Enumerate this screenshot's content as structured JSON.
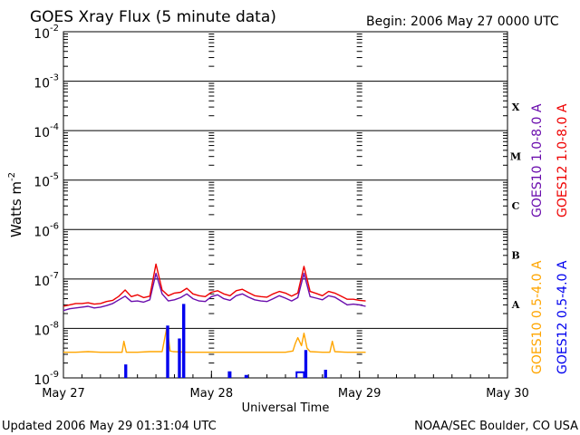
{
  "chart_data": {
    "type": "line",
    "title": "GOES Xray Flux (5 minute data)",
    "begin_label": "Begin:  2006 May 27 0000 UTC",
    "ylabel_main": "Watts m",
    "ylabel_exp": "-2",
    "xlabel": "Universal Time",
    "updated": "Updated 2006 May 29 01:31:04 UTC",
    "credit": "NOAA/SEC Boulder, CO USA",
    "x_ticks": [
      {
        "label": "May 27",
        "hours": 0
      },
      {
        "label": "May 28",
        "hours": 24
      },
      {
        "label": "May 29",
        "hours": 48
      },
      {
        "label": "May 30",
        "hours": 72
      }
    ],
    "y_ticks": [
      {
        "base": "10",
        "exp": "-2",
        "value": 0.01
      },
      {
        "base": "10",
        "exp": "-3",
        "value": 0.001
      },
      {
        "base": "10",
        "exp": "-4",
        "value": 0.0001
      },
      {
        "base": "10",
        "exp": "-5",
        "value": 1e-05
      },
      {
        "base": "10",
        "exp": "-6",
        "value": 1e-06
      },
      {
        "base": "10",
        "exp": "-7",
        "value": 1e-07
      },
      {
        "base": "10",
        "exp": "-8",
        "value": 1e-08
      },
      {
        "base": "10",
        "exp": "-9",
        "value": 1e-09
      }
    ],
    "yscale": "log",
    "ylim": [
      1e-09,
      0.01
    ],
    "xlim_hours": [
      0,
      72
    ],
    "grid": true,
    "flare_classes": [
      {
        "label": "X",
        "value": 0.0001
      },
      {
        "label": "M",
        "value": 1e-05
      },
      {
        "label": "C",
        "value": 1e-06
      },
      {
        "label": "B",
        "value": 1e-07
      },
      {
        "label": "A",
        "value": 1e-08
      }
    ],
    "series": [
      {
        "name": "GOES10 1.0-8.0 A",
        "color": "#6a0dad",
        "x_hours": [
          0,
          1,
          2,
          3,
          4,
          5,
          6,
          7,
          8,
          9,
          10,
          11,
          12,
          13,
          14,
          15,
          16,
          17,
          18,
          19,
          20,
          21,
          22,
          23,
          24,
          25,
          26,
          27,
          28,
          29,
          30,
          31,
          32,
          33,
          34,
          35,
          36,
          37,
          38,
          39,
          40,
          41,
          42,
          43,
          44,
          45,
          46,
          47,
          48,
          49
        ],
        "values": [
          2.3e-08,
          2.5e-08,
          2.6e-08,
          2.7e-08,
          2.8e-08,
          2.6e-08,
          2.7e-08,
          2.9e-08,
          3.2e-08,
          3.8e-08,
          4.5e-08,
          3.5e-08,
          3.6e-08,
          3.4e-08,
          3.8e-08,
          1.3e-07,
          5e-08,
          3.6e-08,
          3.8e-08,
          4.2e-08,
          5e-08,
          4e-08,
          3.6e-08,
          3.5e-08,
          4.4e-08,
          4.8e-08,
          4e-08,
          3.7e-08,
          4.6e-08,
          5e-08,
          4.3e-08,
          3.8e-08,
          3.6e-08,
          3.5e-08,
          4e-08,
          4.6e-08,
          4.1e-08,
          3.6e-08,
          4.2e-08,
          1.3e-07,
          4.4e-08,
          4.1e-08,
          3.8e-08,
          4.6e-08,
          4.3e-08,
          3.6e-08,
          3e-08,
          3.1e-08,
          3e-08,
          2.8e-08
        ]
      },
      {
        "name": "GOES12 1.0-8.0 A",
        "color": "#ee0000",
        "x_hours": [
          0,
          1,
          2,
          3,
          4,
          5,
          6,
          7,
          8,
          9,
          10,
          11,
          12,
          13,
          14,
          15,
          16,
          17,
          18,
          19,
          20,
          21,
          22,
          23,
          24,
          25,
          26,
          27,
          28,
          29,
          30,
          31,
          32,
          33,
          34,
          35,
          36,
          37,
          38,
          39,
          40,
          41,
          42,
          43,
          44,
          45,
          46,
          47,
          48,
          49
        ],
        "values": [
          2.8e-08,
          3e-08,
          3.2e-08,
          3.2e-08,
          3.3e-08,
          3.1e-08,
          3.2e-08,
          3.5e-08,
          3.7e-08,
          4.5e-08,
          6e-08,
          4.4e-08,
          4.8e-08,
          4.2e-08,
          4.5e-08,
          2e-07,
          6e-08,
          4.6e-08,
          5.2e-08,
          5.4e-08,
          6.5e-08,
          5e-08,
          4.6e-08,
          4.4e-08,
          5.4e-08,
          5.8e-08,
          5e-08,
          4.6e-08,
          5.8e-08,
          6.2e-08,
          5.3e-08,
          4.6e-08,
          4.4e-08,
          4.3e-08,
          5e-08,
          5.6e-08,
          5.2e-08,
          4.5e-08,
          5.2e-08,
          1.8e-07,
          5.6e-08,
          5.1e-08,
          4.6e-08,
          5.6e-08,
          5.2e-08,
          4.5e-08,
          3.9e-08,
          3.9e-08,
          3.7e-08,
          3.6e-08
        ]
      },
      {
        "name": "GOES10 0.5-4.0 A",
        "color": "#ffa500",
        "x_hours": [
          0,
          2,
          4,
          6,
          8,
          9.5,
          9.8,
          10.2,
          12,
          14,
          16,
          16.8,
          17.3,
          17.8,
          20,
          24,
          28,
          32,
          36,
          37.2,
          37.6,
          38,
          38.6,
          39,
          39.5,
          40,
          42,
          43.2,
          43.6,
          44,
          46,
          48,
          49
        ],
        "values": [
          3.3e-09,
          3.3e-09,
          3.4e-09,
          3.3e-09,
          3.3e-09,
          3.3e-09,
          5.5e-09,
          3.3e-09,
          3.3e-09,
          3.4e-09,
          3.4e-09,
          1.1e-08,
          3.5e-09,
          3.4e-09,
          3.3e-09,
          3.3e-09,
          3.3e-09,
          3.3e-09,
          3.3e-09,
          3.5e-09,
          5e-09,
          6.5e-09,
          4.5e-09,
          8e-09,
          4e-09,
          3.4e-09,
          3.3e-09,
          3.3e-09,
          5.5e-09,
          3.4e-09,
          3.3e-09,
          3.3e-09,
          3.3e-09
        ]
      },
      {
        "name": "GOES12 0.5-4.0 A",
        "color": "#0000ee",
        "segments": [
          {
            "x_hours": [
              10.0,
              10.0,
              10.2,
              10.2
            ],
            "values": [
              1e-09,
              1.8e-09,
              1.8e-09,
              1e-09
            ]
          },
          {
            "x_hours": [
              16.8,
              16.8,
              17.0,
              17.0
            ],
            "values": [
              1e-09,
              1.1e-08,
              1.1e-08,
              1e-09
            ]
          },
          {
            "x_hours": [
              18.7,
              18.7,
              18.9,
              18.9
            ],
            "values": [
              1e-09,
              6e-09,
              6e-09,
              1e-09
            ]
          },
          {
            "x_hours": [
              19.4,
              19.4,
              19.6,
              19.6
            ],
            "values": [
              1e-09,
              3e-08,
              3e-08,
              1e-09
            ]
          },
          {
            "x_hours": [
              26.8,
              26.8,
              27.1,
              27.1
            ],
            "values": [
              1e-09,
              1.3e-09,
              1.3e-09,
              1e-09
            ]
          },
          {
            "x_hours": [
              29.5,
              29.5,
              29.8,
              29.8
            ],
            "values": [
              1e-09,
              1.1e-09,
              1.1e-09,
              1e-09
            ]
          },
          {
            "x_hours": [
              37.8,
              37.8,
              39.0,
              39.0
            ],
            "values": [
              1e-09,
              1.3e-09,
              1.3e-09,
              1e-09
            ]
          },
          {
            "x_hours": [
              39.2,
              39.2,
              39.4,
              39.4
            ],
            "values": [
              1e-09,
              3.5e-09,
              3.5e-09,
              1e-09
            ]
          },
          {
            "x_hours": [
              42.4,
              42.4,
              42.6,
              42.6
            ],
            "values": [
              1e-09,
              1.4e-09,
              1.4e-09,
              1e-09
            ]
          }
        ]
      }
    ]
  }
}
